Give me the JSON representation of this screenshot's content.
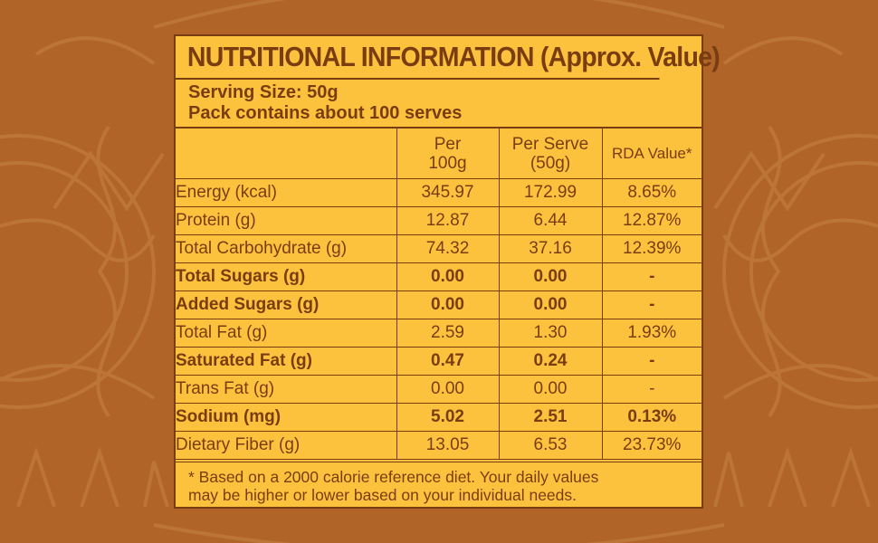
{
  "colors": {
    "background": "#b06428",
    "panel": "#fcc23e",
    "ink": "#7a3d12"
  },
  "title": "NUTRITIONAL INFORMATION (Approx. Value)",
  "serving": {
    "size": "Serving Size: 50g",
    "pack": "Pack contains about 100 serves"
  },
  "headers": {
    "nutrient": "",
    "per100_line1": "Per",
    "per100_line2": "100g",
    "perserve_line1": "Per Serve",
    "perserve_line2": "(50g)",
    "rda": "RDA Value*"
  },
  "rows": [
    {
      "name": "Energy (kcal)",
      "per100": "345.97",
      "perserve": "172.99",
      "rda": "8.65%",
      "bold": false
    },
    {
      "name": "Protein (g)",
      "per100": "12.87",
      "perserve": "6.44",
      "rda": "12.87%",
      "bold": false
    },
    {
      "name": "Total Carbohydrate (g)",
      "per100": "74.32",
      "perserve": "37.16",
      "rda": "12.39%",
      "bold": false
    },
    {
      "name": "Total Sugars (g)",
      "per100": "0.00",
      "perserve": "0.00",
      "rda": "-",
      "bold": true
    },
    {
      "name": "Added Sugars (g)",
      "per100": "0.00",
      "perserve": "0.00",
      "rda": "-",
      "bold": true
    },
    {
      "name": "Total Fat (g)",
      "per100": "2.59",
      "perserve": "1.30",
      "rda": "1.93%",
      "bold": false
    },
    {
      "name": "Saturated Fat (g)",
      "per100": "0.47",
      "perserve": "0.24",
      "rda": "-",
      "bold": true
    },
    {
      "name": "Trans Fat (g)",
      "per100": "0.00",
      "perserve": "0.00",
      "rda": "-",
      "bold": false
    },
    {
      "name": "Sodium (mg)",
      "per100": "5.02",
      "perserve": "2.51",
      "rda": "0.13%",
      "bold": true
    },
    {
      "name": "Dietary Fiber (g)",
      "per100": "13.05",
      "perserve": "6.53",
      "rda": "23.73%",
      "bold": false
    }
  ],
  "footnote": {
    "line1": "* Based on a 2000 calorie reference diet. Your daily values",
    "line2": "may be higher or lower based on your individual needs."
  }
}
